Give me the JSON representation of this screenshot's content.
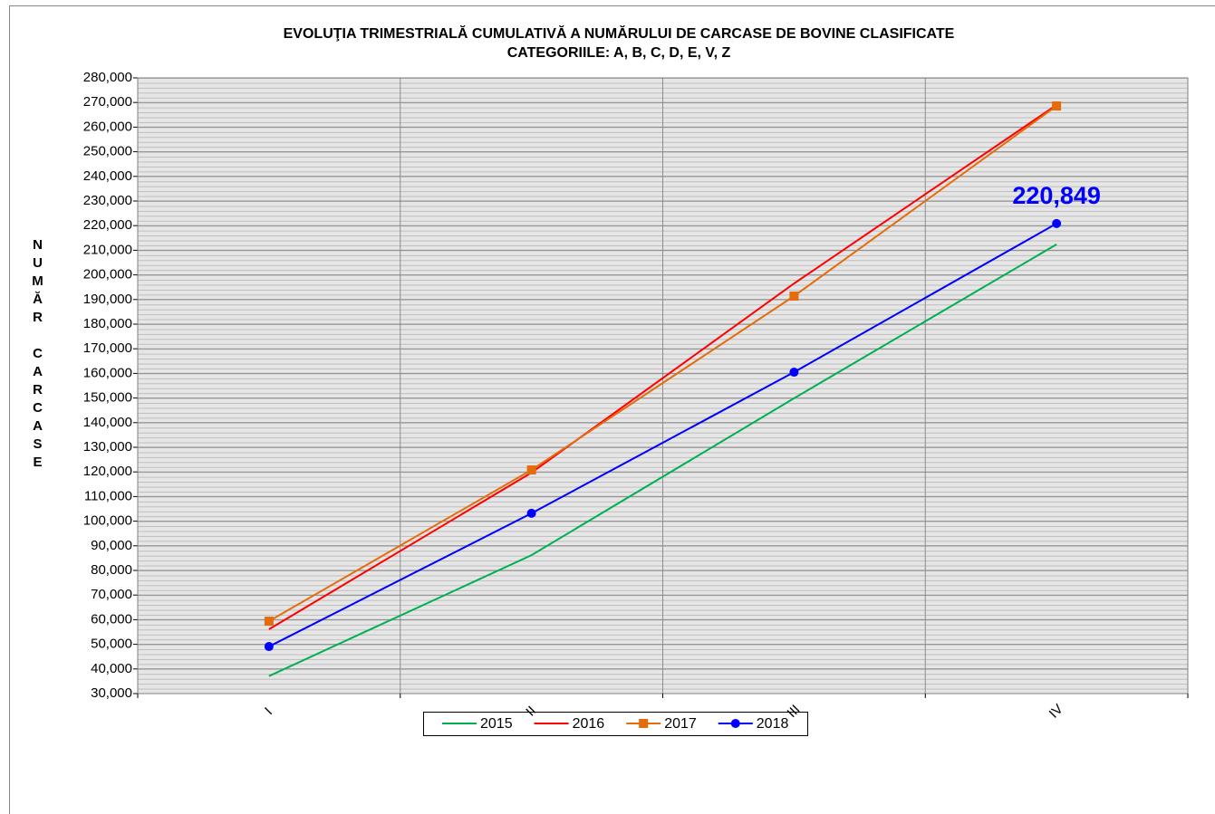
{
  "chart_data": {
    "type": "line",
    "title": "EVOLUŢIA TRIMESTRIALĂ CUMULATIVĂ A NUMĂRULUI DE CARCASE DE BOVINE CLASIFICATE",
    "subtitle": "CATEGORIILE: A, B, C, D, E, V, Z",
    "y_label": "NUMĂR CARCASE",
    "categories": [
      "I",
      "II",
      "III",
      "IV"
    ],
    "series": [
      {
        "name": "2015",
        "color": "#00b050",
        "marker": null,
        "values": [
          37100,
          86200,
          149900,
          212400
        ]
      },
      {
        "name": "2016",
        "color": "#ff0000",
        "marker": null,
        "values": [
          56100,
          119700,
          196500,
          269000
        ]
      },
      {
        "name": "2017",
        "color": "#e46c0a",
        "marker": "square",
        "values": [
          59400,
          120800,
          191400,
          268600
        ]
      },
      {
        "name": "2018",
        "color": "#0000ff",
        "marker": "circle",
        "values": [
          49100,
          103200,
          160500,
          220849
        ],
        "value_labels": [
          null,
          null,
          null,
          "220,849"
        ]
      }
    ],
    "ylim": [
      30000,
      280000
    ],
    "yticks": [
      {
        "value": 30000,
        "label": "30,000"
      },
      {
        "value": 40000,
        "label": "40,000"
      },
      {
        "value": 50000,
        "label": "50,000"
      },
      {
        "value": 60000,
        "label": "60,000"
      },
      {
        "value": 70000,
        "label": "70,000"
      },
      {
        "value": 80000,
        "label": "80,000"
      },
      {
        "value": 90000,
        "label": "90,000"
      },
      {
        "value": 100000,
        "label": "100,000"
      },
      {
        "value": 110000,
        "label": "110,000"
      },
      {
        "value": 120000,
        "label": "120,000"
      },
      {
        "value": 130000,
        "label": "130,000"
      },
      {
        "value": 140000,
        "label": "140,000"
      },
      {
        "value": 150000,
        "label": "150,000"
      },
      {
        "value": 160000,
        "label": "160,000"
      },
      {
        "value": 170000,
        "label": "170,000"
      },
      {
        "value": 180000,
        "label": "180,000"
      },
      {
        "value": 190000,
        "label": "190,000"
      },
      {
        "value": 200000,
        "label": "200,000"
      },
      {
        "value": 210000,
        "label": "210,000"
      },
      {
        "value": 220000,
        "label": "220,000"
      },
      {
        "value": 230000,
        "label": "230,000"
      },
      {
        "value": 240000,
        "label": "240,000"
      },
      {
        "value": 250000,
        "label": "250,000"
      },
      {
        "value": 260000,
        "label": "260,000"
      },
      {
        "value": 270000,
        "label": "270,000"
      },
      {
        "value": 280000,
        "label": "280,000"
      }
    ],
    "grid": true,
    "legend": "bottom"
  }
}
